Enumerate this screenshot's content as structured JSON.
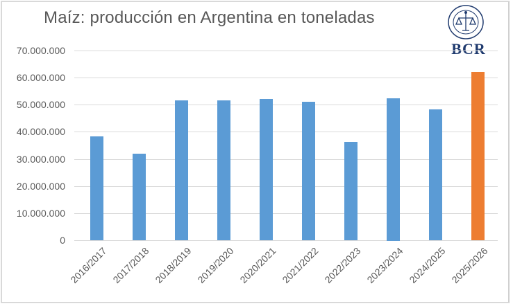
{
  "chart_data": {
    "type": "bar",
    "title": "Maíz: producción en Argentina en toneladas",
    "xlabel": "",
    "ylabel": "",
    "categories": [
      "2016/2017",
      "2017/2018",
      "2018/2019",
      "2019/2020",
      "2020/2021",
      "2021/2022",
      "2022/2023",
      "2023/2024",
      "2024/2025",
      "2025/2026"
    ],
    "values": [
      38200000,
      32000000,
      51500000,
      51500000,
      52000000,
      51000000,
      36200000,
      52500000,
      48300000,
      62000000
    ],
    "highlight_index": 9,
    "colors": {
      "default": "#5b9bd5",
      "highlight": "#ed7d31"
    },
    "ylim": [
      0,
      70000000
    ],
    "yticks": [
      0,
      10000000,
      20000000,
      30000000,
      40000000,
      50000000,
      60000000,
      70000000
    ],
    "ytick_labels": [
      "0",
      "10.000.000",
      "20.000.000",
      "30.000.000",
      "40.000.000",
      "50.000.000",
      "60.000.000",
      "70.000.000"
    ],
    "grid": true,
    "legend": null
  },
  "logo": {
    "text": "BCR",
    "icon": "bcr-seal-icon"
  }
}
